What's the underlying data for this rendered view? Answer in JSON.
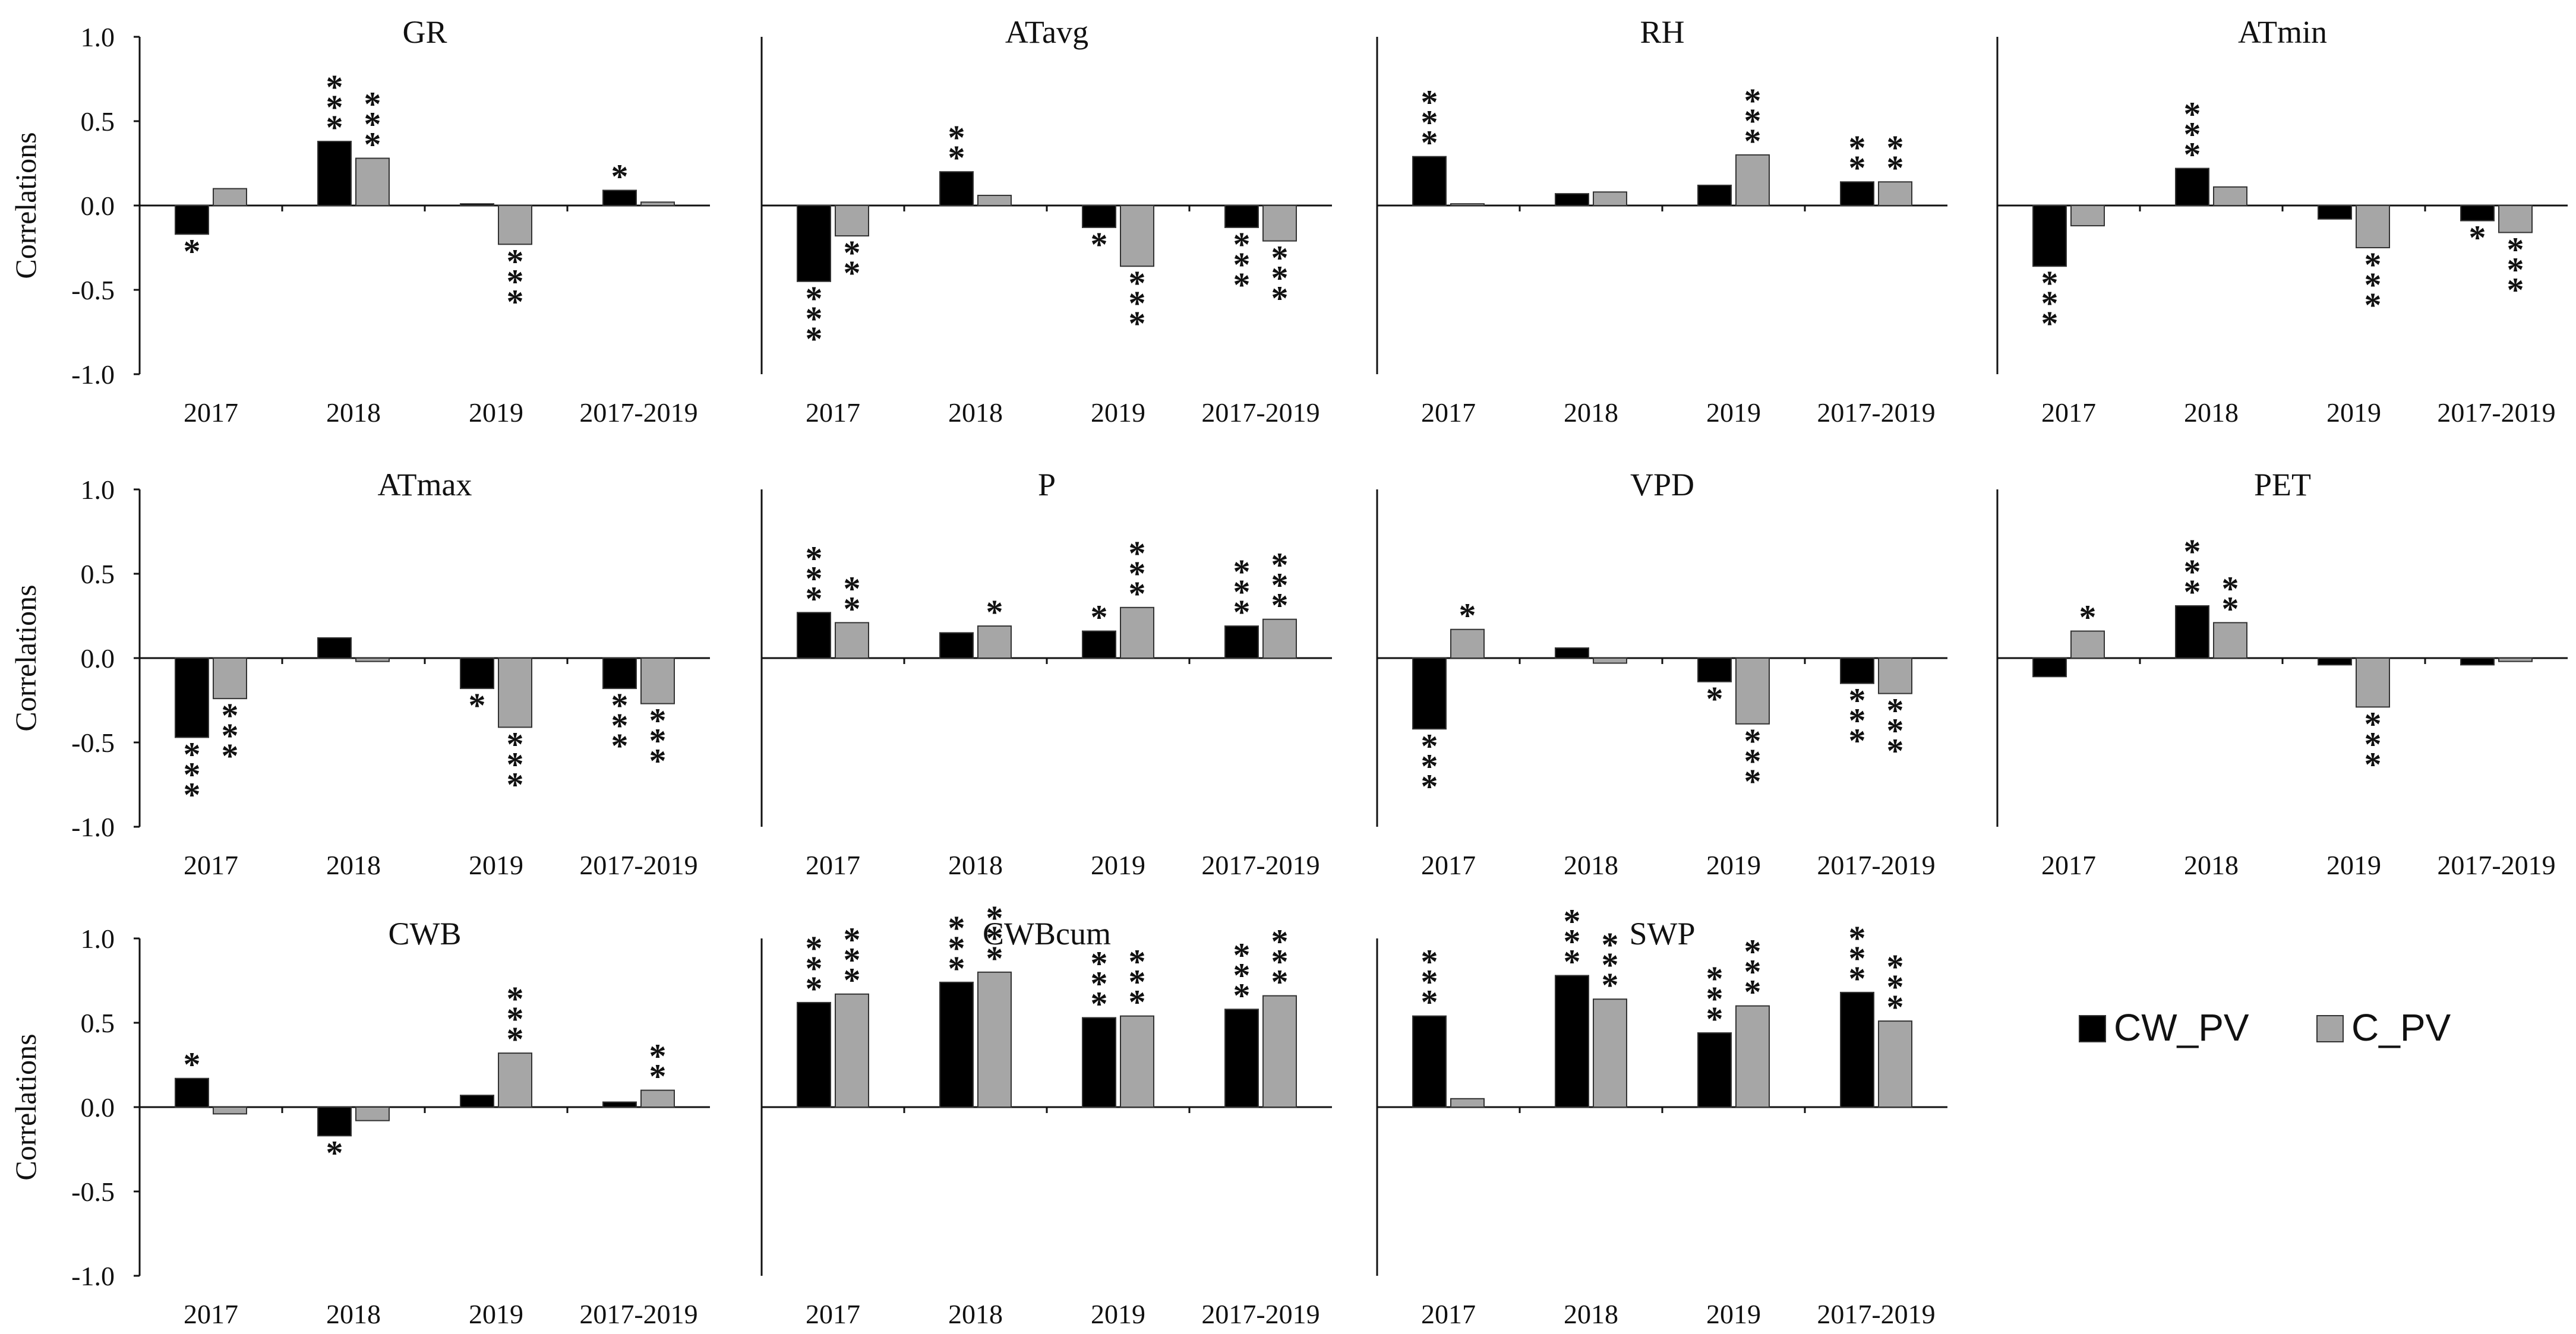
{
  "colors": {
    "CW_PV": "#000000",
    "C_PV": "#a6a6a6",
    "axis": "#111111",
    "star_cw": "#222222",
    "star_c": "#555555"
  },
  "y_axis_label": "Correlations",
  "y_ticks": [
    "1.0",
    "0.5",
    "0.0",
    "-0.5",
    "-1.0"
  ],
  "legend": {
    "series": [
      "CW_PV",
      "C_PV"
    ]
  },
  "chart_data": [
    {
      "type": "bar",
      "title": "GR",
      "categories": [
        "2017",
        "2018",
        "2019",
        "2017-2019"
      ],
      "ylim": [
        -1,
        1
      ],
      "ylabel": "Correlations",
      "series": [
        {
          "name": "CW_PV",
          "values": [
            -0.17,
            0.38,
            0.01,
            0.09
          ],
          "stars": [
            "*",
            "***",
            "",
            "*"
          ]
        },
        {
          "name": "C_PV",
          "values": [
            0.1,
            0.28,
            -0.23,
            0.02
          ],
          "stars": [
            "",
            "***",
            "***",
            ""
          ]
        }
      ]
    },
    {
      "type": "bar",
      "title": "ATavg",
      "categories": [
        "2017",
        "2018",
        "2019",
        "2017-2019"
      ],
      "ylim": [
        -1,
        1
      ],
      "ylabel": "",
      "series": [
        {
          "name": "CW_PV",
          "values": [
            -0.45,
            0.2,
            -0.13,
            -0.13
          ],
          "stars": [
            "***",
            "**",
            "*",
            "***"
          ]
        },
        {
          "name": "C_PV",
          "values": [
            -0.18,
            0.06,
            -0.36,
            -0.21
          ],
          "stars": [
            "**",
            "",
            "***",
            "***"
          ]
        }
      ]
    },
    {
      "type": "bar",
      "title": "RH",
      "categories": [
        "2017",
        "2018",
        "2019",
        "2017-2019"
      ],
      "ylim": [
        -1,
        1
      ],
      "ylabel": "",
      "series": [
        {
          "name": "CW_PV",
          "values": [
            0.29,
            0.07,
            0.12,
            0.14
          ],
          "stars": [
            "***",
            "",
            "",
            "**"
          ]
        },
        {
          "name": "C_PV",
          "values": [
            0.01,
            0.08,
            0.3,
            0.14
          ],
          "stars": [
            "",
            "",
            "***",
            "**"
          ]
        }
      ]
    },
    {
      "type": "bar",
      "title": "ATmin",
      "categories": [
        "2017",
        "2018",
        "2019",
        "2017-2019"
      ],
      "ylim": [
        -1,
        1
      ],
      "ylabel": "",
      "series": [
        {
          "name": "CW_PV",
          "values": [
            -0.36,
            0.22,
            -0.08,
            -0.09
          ],
          "stars": [
            "***",
            "***",
            "",
            "*"
          ]
        },
        {
          "name": "C_PV",
          "values": [
            -0.12,
            0.11,
            -0.25,
            -0.16
          ],
          "stars": [
            "",
            "",
            "***",
            "***"
          ]
        }
      ]
    },
    {
      "type": "bar",
      "title": "ATmax",
      "categories": [
        "2017",
        "2018",
        "2019",
        "2017-2019"
      ],
      "ylim": [
        -1,
        1
      ],
      "ylabel": "Correlations",
      "series": [
        {
          "name": "CW_PV",
          "values": [
            -0.47,
            0.12,
            -0.18,
            -0.18
          ],
          "stars": [
            "***",
            "",
            "*",
            "***"
          ]
        },
        {
          "name": "C_PV",
          "values": [
            -0.24,
            -0.02,
            -0.41,
            -0.27
          ],
          "stars": [
            "***",
            "",
            "***",
            "***"
          ]
        }
      ]
    },
    {
      "type": "bar",
      "title": "P",
      "categories": [
        "2017",
        "2018",
        "2019",
        "2017-2019"
      ],
      "ylim": [
        -1,
        1
      ],
      "ylabel": "",
      "series": [
        {
          "name": "CW_PV",
          "values": [
            0.27,
            0.15,
            0.16,
            0.19
          ],
          "stars": [
            "***",
            "",
            "*",
            "***"
          ]
        },
        {
          "name": "C_PV",
          "values": [
            0.21,
            0.19,
            0.3,
            0.23
          ],
          "stars": [
            "**",
            "*",
            "***",
            "***"
          ]
        }
      ]
    },
    {
      "type": "bar",
      "title": "VPD",
      "categories": [
        "2017",
        "2018",
        "2019",
        "2017-2019"
      ],
      "ylim": [
        -1,
        1
      ],
      "ylabel": "",
      "series": [
        {
          "name": "CW_PV",
          "values": [
            -0.42,
            0.06,
            -0.14,
            -0.15
          ],
          "stars": [
            "***",
            "",
            "*",
            "***"
          ]
        },
        {
          "name": "C_PV",
          "values": [
            0.17,
            -0.03,
            -0.39,
            -0.21
          ],
          "stars": [
            "*",
            "",
            "***",
            "***"
          ]
        }
      ]
    },
    {
      "type": "bar",
      "title": "PET",
      "categories": [
        "2017",
        "2018",
        "2019",
        "2017-2019"
      ],
      "ylim": [
        -1,
        1
      ],
      "ylabel": "",
      "series": [
        {
          "name": "CW_PV",
          "values": [
            -0.11,
            0.31,
            -0.04,
            -0.04
          ],
          "stars": [
            "",
            "***",
            "",
            ""
          ]
        },
        {
          "name": "C_PV",
          "values": [
            0.16,
            0.21,
            -0.29,
            -0.02
          ],
          "stars": [
            "*",
            "**",
            "***",
            ""
          ]
        }
      ]
    },
    {
      "type": "bar",
      "title": "CWB",
      "categories": [
        "2017",
        "2018",
        "2019",
        "2017-2019"
      ],
      "ylim": [
        -1,
        1
      ],
      "ylabel": "Correlations",
      "series": [
        {
          "name": "CW_PV",
          "values": [
            0.17,
            -0.17,
            0.07,
            0.03
          ],
          "stars": [
            "*",
            "*",
            "",
            ""
          ]
        },
        {
          "name": "C_PV",
          "values": [
            -0.04,
            -0.08,
            0.32,
            0.1
          ],
          "stars": [
            "",
            "",
            "***",
            "**"
          ]
        }
      ]
    },
    {
      "type": "bar",
      "title": "CWBcum",
      "categories": [
        "2017",
        "2018",
        "2019",
        "2017-2019"
      ],
      "ylim": [
        -1,
        1
      ],
      "ylabel": "",
      "series": [
        {
          "name": "CW_PV",
          "values": [
            0.62,
            0.74,
            0.53,
            0.58
          ],
          "stars": [
            "***",
            "***",
            "***",
            "***"
          ]
        },
        {
          "name": "C_PV",
          "values": [
            0.67,
            0.8,
            0.54,
            0.66
          ],
          "stars": [
            "***",
            "***",
            "***",
            "***"
          ]
        }
      ]
    },
    {
      "type": "bar",
      "title": "SWP",
      "categories": [
        "2017",
        "2018",
        "2019",
        "2017-2019"
      ],
      "ylim": [
        -1,
        1
      ],
      "ylabel": "",
      "series": [
        {
          "name": "CW_PV",
          "values": [
            0.54,
            0.78,
            0.44,
            0.68
          ],
          "stars": [
            "***",
            "***",
            "***",
            "***"
          ]
        },
        {
          "name": "C_PV",
          "values": [
            0.05,
            0.64,
            0.6,
            0.51
          ],
          "stars": [
            "",
            "***",
            "***",
            "***"
          ]
        }
      ]
    }
  ]
}
